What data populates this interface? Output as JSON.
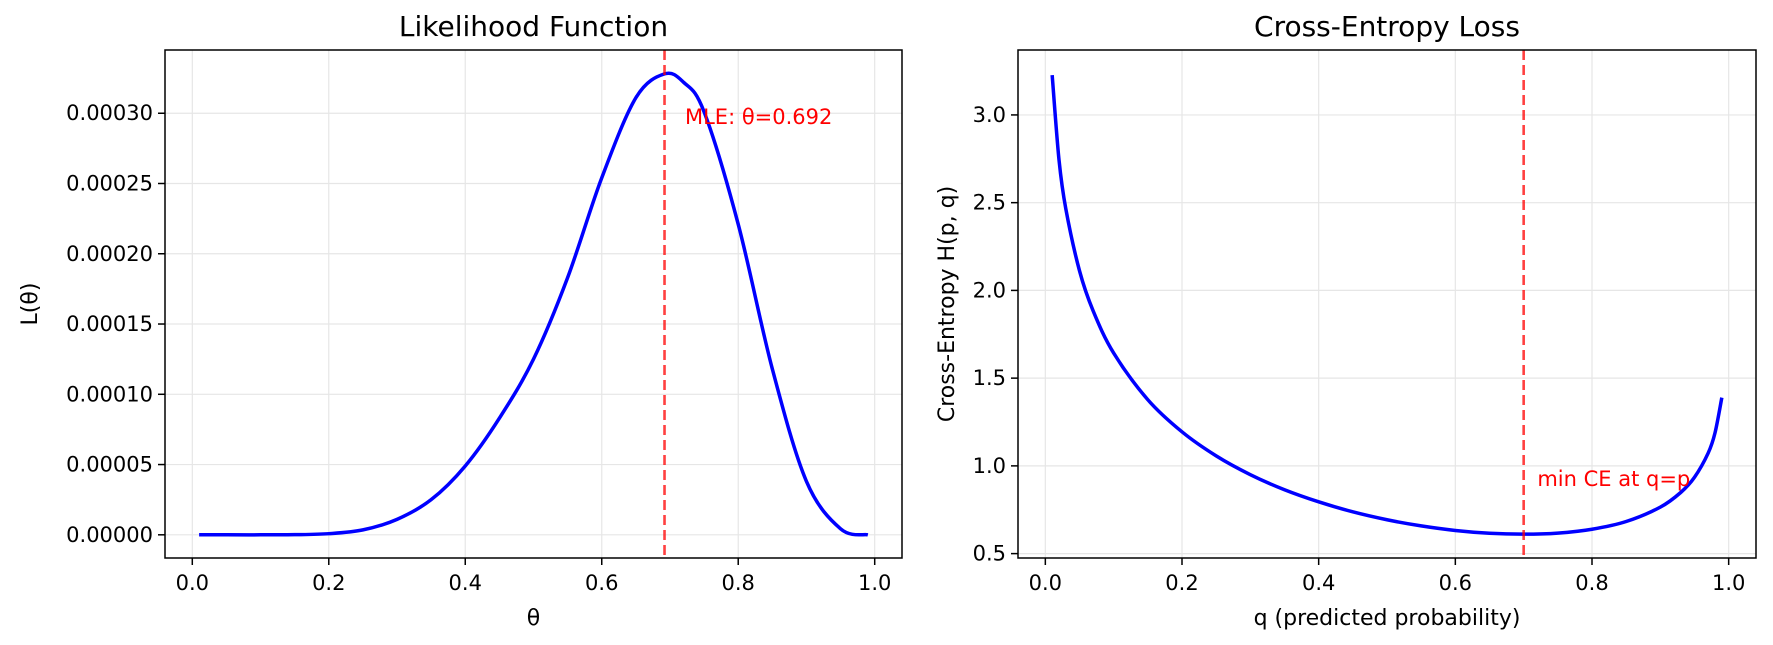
{
  "chart_data": [
    {
      "type": "line",
      "title": "Likelihood Function",
      "xlabel": "θ",
      "ylabel": "L(θ)",
      "xlim": [
        -0.04,
        1.04
      ],
      "ylim": [
        -1.65e-05,
        0.000345
      ],
      "x_ticks": [
        "0.0",
        "0.2",
        "0.4",
        "0.6",
        "0.8",
        "1.0"
      ],
      "y_ticks": [
        "0.00000",
        "0.00005",
        "0.00010",
        "0.00015",
        "0.00020",
        "0.00025",
        "0.00030"
      ],
      "grid": true,
      "series": [
        {
          "color": "#0000ff",
          "x": [
            0.01,
            0.05,
            0.1,
            0.15,
            0.2,
            0.25,
            0.3,
            0.35,
            0.4,
            0.45,
            0.5,
            0.55,
            0.6,
            0.65,
            0.692,
            0.72,
            0.75,
            0.8,
            0.85,
            0.9,
            0.95,
            0.99
          ],
          "y": [
            0.0,
            0.0,
            0.0,
            1e-07,
            8e-07,
            3.5e-06,
            1.1e-05,
            2.5e-05,
            4.9e-05,
            8.3e-05,
            0.000125,
            0.000183,
            0.000254,
            0.000311,
            0.000328,
            0.000322,
            0.000301,
            0.000221,
            0.000118,
            3.8e-05,
            4.3e-06,
            0.0
          ]
        }
      ],
      "vline": {
        "x": 0.692,
        "color": "#ff0000",
        "style": "dashed"
      },
      "annotation": {
        "text": "MLE: θ=0.692",
        "x": 0.722,
        "y": 0.000298
      }
    },
    {
      "type": "line",
      "title": "Cross-Entropy Loss",
      "xlabel": "q (predicted probability)",
      "ylabel": "Cross-Entropy H(p, q)",
      "xlim": [
        -0.04,
        1.04
      ],
      "ylim": [
        0.475,
        3.37
      ],
      "x_ticks": [
        "0.0",
        "0.2",
        "0.4",
        "0.6",
        "0.8",
        "1.0"
      ],
      "y_ticks": [
        "0.5",
        "1.0",
        "1.5",
        "2.0",
        "2.5",
        "3.0"
      ],
      "grid": true,
      "series": [
        {
          "color": "#0000ff",
          "x": [
            0.01,
            0.02,
            0.03,
            0.05,
            0.07,
            0.1,
            0.15,
            0.2,
            0.25,
            0.3,
            0.35,
            0.4,
            0.45,
            0.5,
            0.55,
            0.6,
            0.65,
            0.7,
            0.75,
            0.8,
            0.85,
            0.9,
            0.93,
            0.95,
            0.97,
            0.98,
            0.99
          ],
          "y": [
            3.23,
            2.74,
            2.456,
            2.097,
            1.86,
            1.61,
            1.328,
            1.127,
            0.97,
            0.843,
            0.736,
            0.646,
            0.671,
            0.693,
            0.666,
            0.643,
            0.625,
            0.611,
            0.62,
            0.643,
            0.683,
            0.748,
            0.811,
            0.87,
            0.969,
            1.049,
            1.395
          ]
        }
      ],
      "vline": {
        "x": 0.7,
        "color": "#ff0000",
        "style": "dashed"
      },
      "annotation": {
        "text": "min CE at q=p",
        "x": 0.72,
        "y": 0.93
      }
    }
  ]
}
